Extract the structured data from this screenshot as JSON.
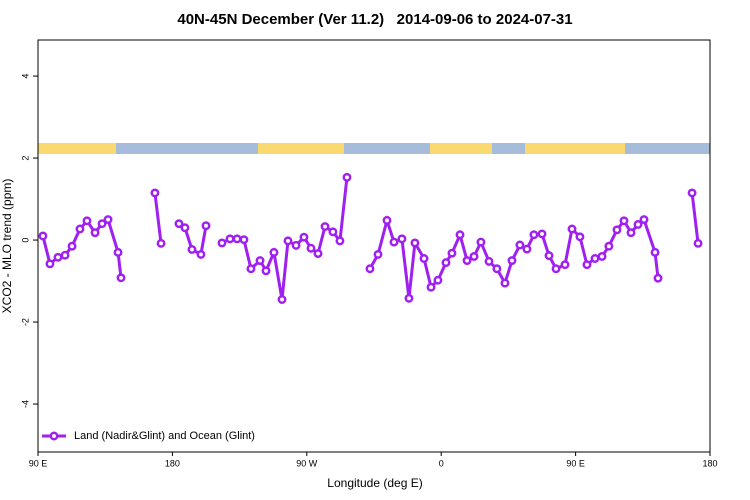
{
  "chart_data": {
    "type": "line",
    "title": "40N-45N December (Ver 11.2)   2014-09-06 to 2024-07-31",
    "x_label": "Longitude (deg E)",
    "y_label": "XCO2 - MLO trend (ppm)",
    "xlim": [
      90,
      540
    ],
    "xticks": [
      {
        "value": 90,
        "label": "90 E"
      },
      {
        "value": 180,
        "label": "180"
      },
      {
        "value": 270,
        "label": "90 W"
      },
      {
        "value": 360,
        "label": "0"
      },
      {
        "value": 450,
        "label": "90 E"
      },
      {
        "value": 540,
        "label": "180"
      }
    ],
    "ylim": [
      -5.17,
      4.88
    ],
    "yticks": [
      -4,
      -2,
      0,
      2,
      4
    ],
    "legend": "bottom-left",
    "x": [
      93.3,
      98.0,
      103.4,
      108.1,
      112.8,
      118.1,
      122.8,
      128.2,
      132.9,
      136.9,
      143.6,
      145.6,
      null,
      168.3,
      172.4,
      null,
      184.4,
      188.4,
      193.1,
      199.1,
      202.5,
      null,
      213.2,
      218.6,
      223.3,
      227.9,
      232.6,
      238.7,
      242.7,
      248.0,
      253.4,
      257.4,
      262.8,
      268.1,
      272.8,
      277.5,
      282.2,
      287.5,
      292.2,
      296.9,
      null,
      312.3,
      317.7,
      323.7,
      328.4,
      333.7,
      338.4,
      342.4,
      348.5,
      353.2,
      357.8,
      363.2,
      367.2,
      372.6,
      377.3,
      382.0,
      386.6,
      392.0,
      397.3,
      402.7,
      407.4,
      412.7,
      417.4,
      422.1,
      427.5,
      432.2,
      436.9,
      442.9,
      447.6,
      452.9,
      457.6,
      463.0,
      467.7,
      472.3,
      477.7,
      482.4,
      487.1,
      491.8,
      495.8,
      503.2,
      505.2,
      null,
      528.0,
      532.0
    ],
    "series": [
      {
        "name": "Land (Nadir&Glint) and Ocean (Glint)",
        "color": "#a020f0",
        "values": [
          0.1,
          -0.58,
          -0.42,
          -0.37,
          -0.15,
          0.27,
          0.47,
          0.18,
          0.4,
          0.5,
          -0.3,
          -0.92,
          null,
          1.15,
          -0.08,
          null,
          0.4,
          0.3,
          -0.23,
          -0.35,
          0.35,
          null,
          -0.07,
          0.03,
          0.03,
          0.01,
          -0.7,
          -0.5,
          -0.75,
          -0.3,
          -1.45,
          -0.02,
          -0.13,
          0.07,
          -0.2,
          -0.33,
          0.33,
          0.2,
          -0.02,
          1.53,
          null,
          -0.7,
          -0.35,
          0.48,
          -0.05,
          0.03,
          -1.42,
          -0.07,
          -0.45,
          -1.15,
          -0.98,
          -0.55,
          -0.32,
          0.13,
          -0.5,
          -0.4,
          -0.05,
          -0.52,
          -0.7,
          -1.05,
          -0.5,
          -0.12,
          -0.22,
          0.13,
          0.15,
          -0.38,
          -0.7,
          -0.6,
          0.27,
          0.08,
          -0.6,
          -0.45,
          -0.4,
          -0.15,
          0.25,
          0.47,
          0.18,
          0.38,
          0.5,
          -0.3,
          -0.93,
          null,
          1.15,
          -0.08
        ]
      }
    ]
  }
}
